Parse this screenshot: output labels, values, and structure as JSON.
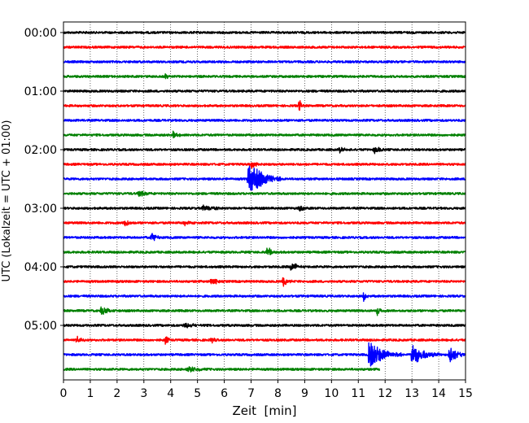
{
  "chart_data": {
    "type": "line",
    "title": "",
    "xlabel": "Zeit  [min]",
    "ylabel": "UTC (Lokalzeit = UTC + 01:00)",
    "xlim": [
      0,
      15
    ],
    "xticks": [
      0,
      1,
      2,
      3,
      4,
      5,
      6,
      7,
      8,
      9,
      10,
      11,
      12,
      13,
      14,
      15
    ],
    "yticks": [
      "00:00",
      "01:00",
      "02:00",
      "03:00",
      "04:00",
      "05:00"
    ],
    "minutes_per_trace": 15,
    "grid": true,
    "grid_axis": "x",
    "trace_colors": [
      "#000000",
      "#ff0000",
      "#0000ff",
      "#008000"
    ],
    "series": [
      {
        "start": "00:00",
        "color": "#000000",
        "end_min": 15,
        "events": []
      },
      {
        "start": "00:15",
        "color": "#ff0000",
        "end_min": 15,
        "events": []
      },
      {
        "start": "00:30",
        "color": "#0000ff",
        "end_min": 15,
        "events": []
      },
      {
        "start": "00:45",
        "color": "#008000",
        "end_min": 15,
        "events": [
          {
            "t": 3.8,
            "amp": 0.5,
            "dur": 0.2
          }
        ]
      },
      {
        "start": "01:00",
        "color": "#000000",
        "end_min": 15,
        "events": []
      },
      {
        "start": "01:15",
        "color": "#ff0000",
        "end_min": 15,
        "events": [
          {
            "t": 8.8,
            "amp": 0.9,
            "dur": 0.15
          }
        ]
      },
      {
        "start": "01:30",
        "color": "#0000ff",
        "end_min": 15,
        "events": []
      },
      {
        "start": "01:45",
        "color": "#008000",
        "end_min": 15,
        "events": [
          {
            "t": 4.1,
            "amp": 0.5,
            "dur": 0.3
          }
        ]
      },
      {
        "start": "02:00",
        "color": "#000000",
        "end_min": 15,
        "events": [
          {
            "t": 10.3,
            "amp": 0.4,
            "dur": 0.3
          },
          {
            "t": 11.6,
            "amp": 0.5,
            "dur": 0.4
          }
        ]
      },
      {
        "start": "02:15",
        "color": "#ff0000",
        "end_min": 15,
        "events": [
          {
            "t": 7.0,
            "amp": 0.5,
            "dur": 0.5
          }
        ]
      },
      {
        "start": "02:30",
        "color": "#0000ff",
        "end_min": 15,
        "events": [
          {
            "t": 6.9,
            "amp": 2.3,
            "dur": 1.2
          }
        ]
      },
      {
        "start": "02:45",
        "color": "#008000",
        "end_min": 15,
        "events": [
          {
            "t": 2.8,
            "amp": 0.4,
            "dur": 0.5
          }
        ]
      },
      {
        "start": "03:00",
        "color": "#000000",
        "end_min": 15,
        "events": [
          {
            "t": 5.2,
            "amp": 0.4,
            "dur": 0.8
          },
          {
            "t": 8.8,
            "amp": 0.6,
            "dur": 0.3
          }
        ]
      },
      {
        "start": "03:15",
        "color": "#ff0000",
        "end_min": 15,
        "events": [
          {
            "t": 2.3,
            "amp": 0.6,
            "dur": 0.3
          },
          {
            "t": 4.5,
            "amp": 0.4,
            "dur": 0.5
          }
        ]
      },
      {
        "start": "03:30",
        "color": "#0000ff",
        "end_min": 15,
        "events": [
          {
            "t": 3.3,
            "amp": 0.8,
            "dur": 0.3
          }
        ]
      },
      {
        "start": "03:45",
        "color": "#008000",
        "end_min": 15,
        "events": [
          {
            "t": 7.6,
            "amp": 0.7,
            "dur": 0.4
          }
        ]
      },
      {
        "start": "04:00",
        "color": "#000000",
        "end_min": 15,
        "events": [
          {
            "t": 8.5,
            "amp": 0.7,
            "dur": 0.4
          }
        ]
      },
      {
        "start": "04:15",
        "color": "#ff0000",
        "end_min": 15,
        "events": [
          {
            "t": 5.5,
            "amp": 0.5,
            "dur": 0.5
          },
          {
            "t": 8.2,
            "amp": 0.7,
            "dur": 0.4
          }
        ]
      },
      {
        "start": "04:30",
        "color": "#0000ff",
        "end_min": 15,
        "events": [
          {
            "t": 11.2,
            "amp": 0.8,
            "dur": 0.2
          }
        ]
      },
      {
        "start": "04:45",
        "color": "#008000",
        "end_min": 15,
        "events": [
          {
            "t": 1.4,
            "amp": 0.5,
            "dur": 0.8
          },
          {
            "t": 11.7,
            "amp": 0.8,
            "dur": 0.2
          }
        ]
      },
      {
        "start": "05:00",
        "color": "#000000",
        "end_min": 15,
        "events": [
          {
            "t": 4.5,
            "amp": 0.3,
            "dur": 0.8
          }
        ]
      },
      {
        "start": "05:15",
        "color": "#ff0000",
        "end_min": 15,
        "events": [
          {
            "t": 0.5,
            "amp": 0.4,
            "dur": 0.4
          },
          {
            "t": 3.8,
            "amp": 0.7,
            "dur": 0.2
          },
          {
            "t": 5.5,
            "amp": 0.4,
            "dur": 0.3
          }
        ]
      },
      {
        "start": "05:30",
        "color": "#0000ff",
        "end_min": 15,
        "events": [
          {
            "t": 11.4,
            "amp": 1.8,
            "dur": 1.2
          },
          {
            "t": 13.0,
            "amp": 1.4,
            "dur": 1.0
          },
          {
            "t": 14.4,
            "amp": 1.2,
            "dur": 0.6
          }
        ]
      },
      {
        "start": "05:45",
        "color": "#008000",
        "end_min": 11.8,
        "events": [
          {
            "t": 4.6,
            "amp": 0.4,
            "dur": 0.8
          }
        ]
      }
    ]
  }
}
